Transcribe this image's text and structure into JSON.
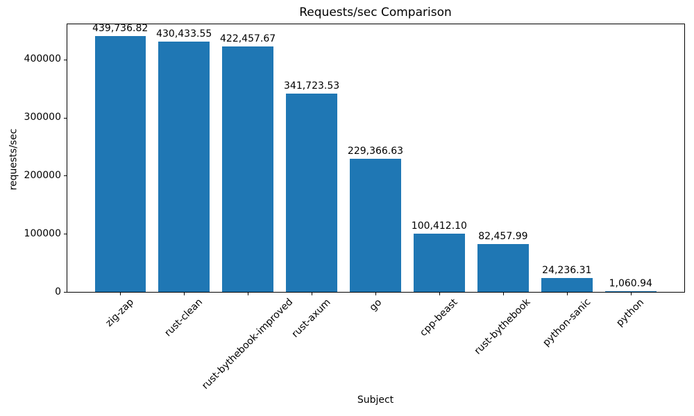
{
  "chart_data": {
    "type": "bar",
    "title": "Requests/sec Comparison",
    "xlabel": "Subject",
    "ylabel": "requests/sec",
    "categories": [
      "zig-zap",
      "rust-clean",
      "rust-bythebook-improved",
      "rust-axum",
      "go",
      "cpp-beast",
      "rust-bythebook",
      "python-sanic",
      "python"
    ],
    "values": [
      439736.82,
      430433.55,
      422457.67,
      341723.53,
      229366.63,
      100412.1,
      82457.99,
      24236.31,
      1060.94
    ],
    "value_labels": [
      "439,736.82",
      "430,433.55",
      "422,457.67",
      "341,723.53",
      "229,366.63",
      "100,412.10",
      "82,457.99",
      "24,236.31",
      "1,060.94"
    ],
    "yticks": [
      0,
      100000,
      200000,
      300000,
      400000
    ],
    "ytick_labels": [
      "0",
      "100000",
      "200000",
      "300000",
      "400000"
    ],
    "ylim": [
      0,
      461724
    ],
    "xtick_rotation": 45,
    "grid": false,
    "legend": null,
    "bar_color": "#1f77b4",
    "axis_color": "#000000",
    "text_color": "#000000",
    "background": "#ffffff"
  }
}
